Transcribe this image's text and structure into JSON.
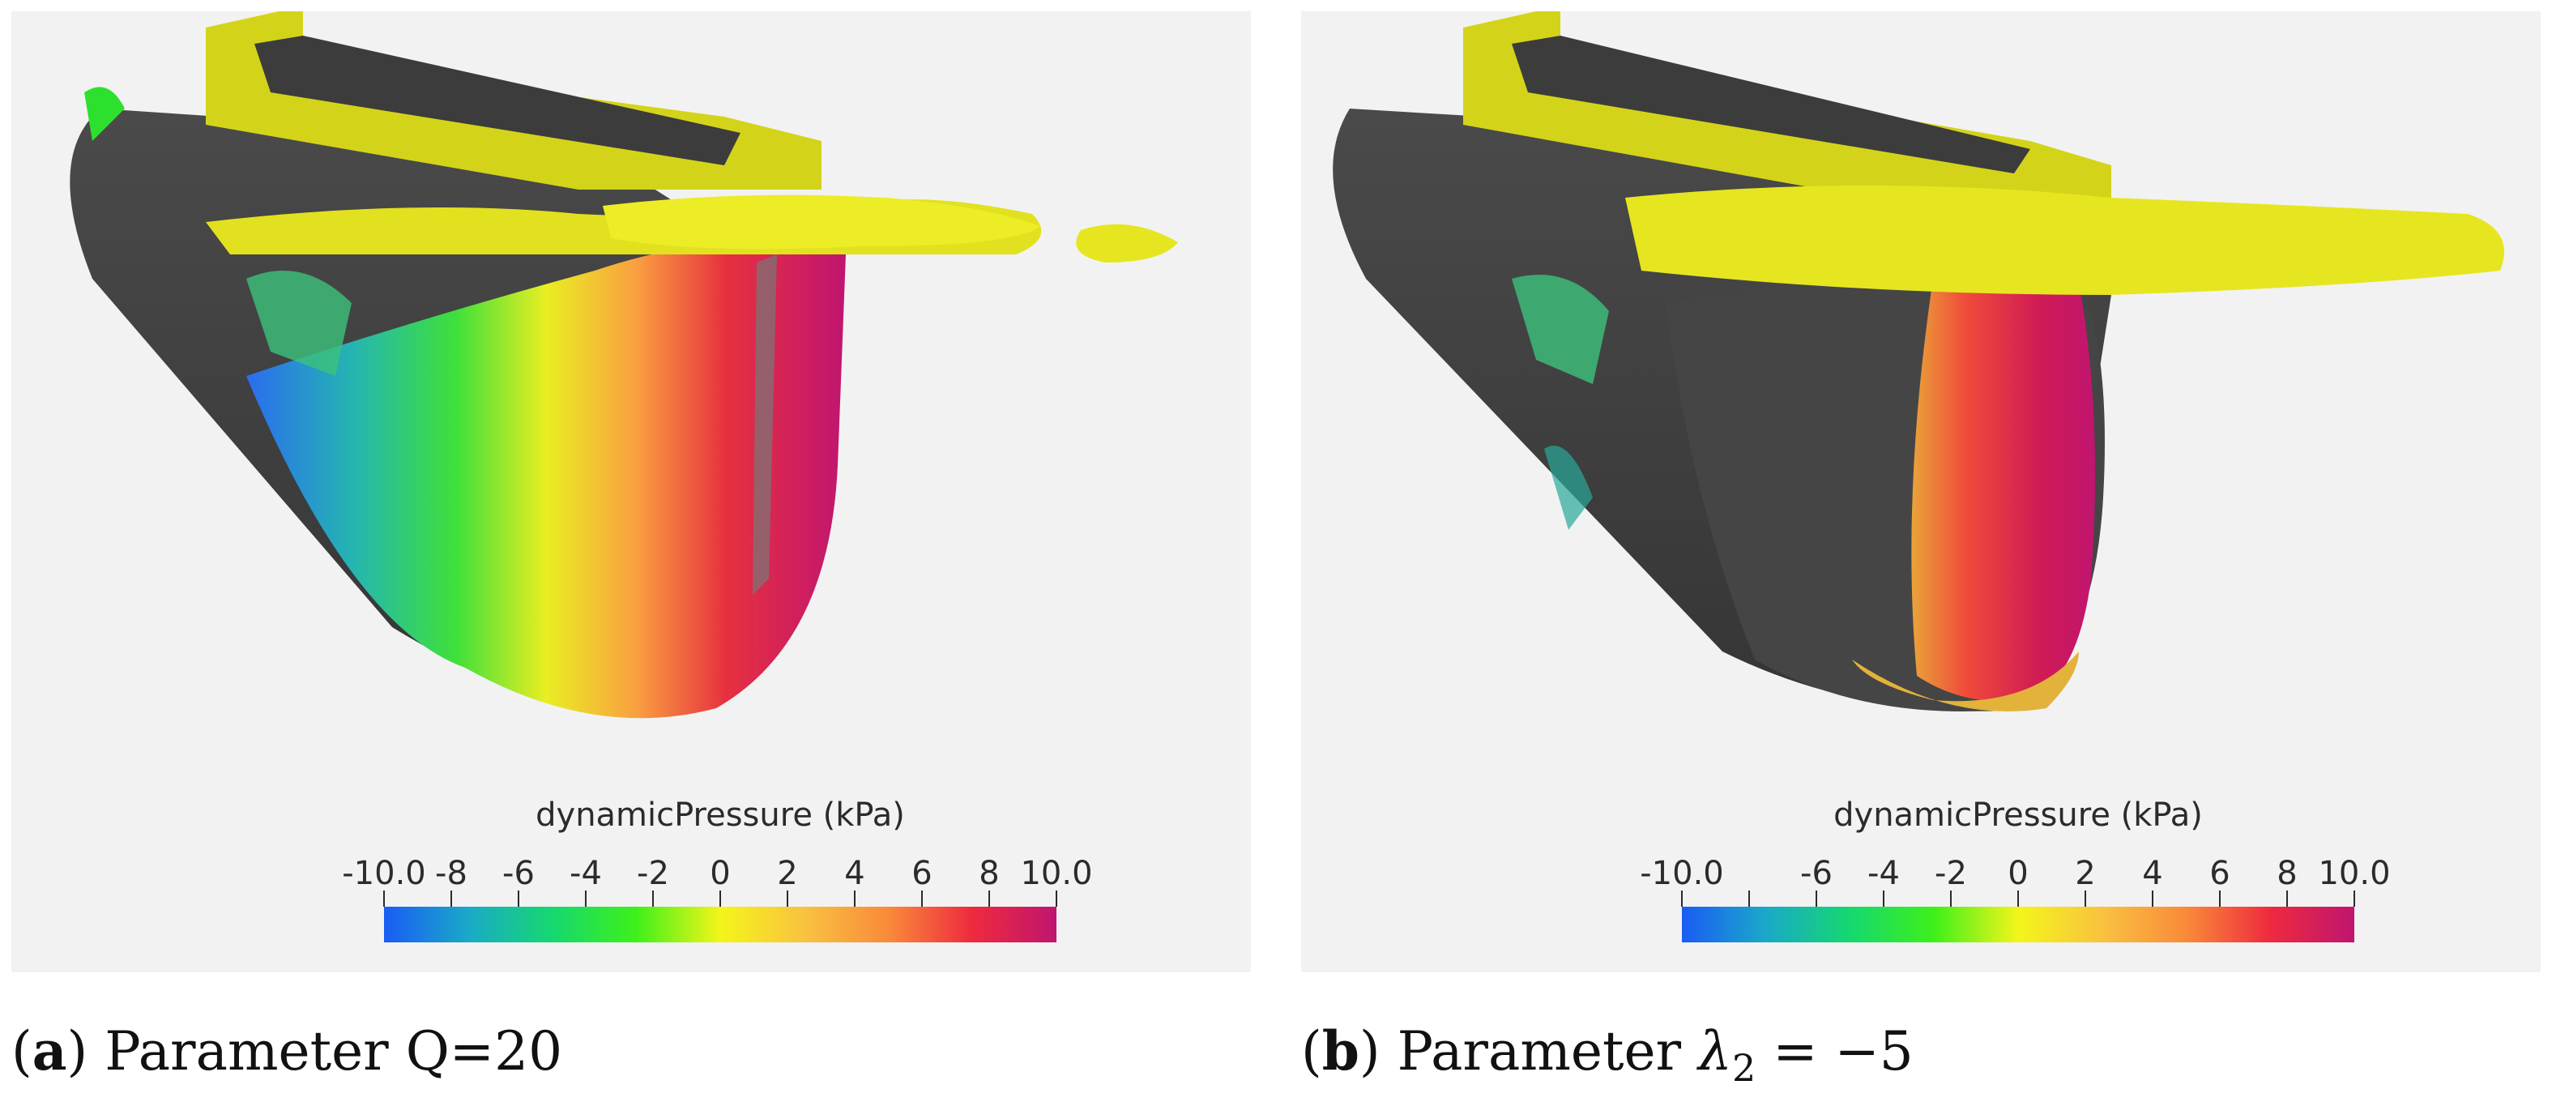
{
  "panels": [
    {
      "id": "a",
      "caption": {
        "label": "a",
        "text": "Parameter Q=20"
      },
      "legend": {
        "title": "dynamicPressure (kPa)",
        "ticks": [
          "-10.0",
          "-8",
          "-6",
          "-4",
          "-2",
          "0",
          "2",
          "4",
          "6",
          "8",
          "10.0"
        ],
        "tick_values": [
          -10,
          -8,
          -6,
          -4,
          -2,
          0,
          2,
          4,
          6,
          8,
          10
        ],
        "range": [
          -10,
          10
        ],
        "colormap": [
          "#1a5cf5",
          "#1aa9c8",
          "#15d870",
          "#3ef01a",
          "#f4f51a",
          "#f9c240",
          "#f98a3a",
          "#ee2a3e",
          "#c01570"
        ]
      }
    },
    {
      "id": "b",
      "caption": {
        "label": "b",
        "text_prefix": "Parameter ",
        "math_symbol": "λ",
        "math_subscript": "2",
        "math_rest": " = −5"
      },
      "legend": {
        "title": "dynamicPressure (kPa)",
        "ticks": [
          "-10.0",
          "",
          "-6",
          "-4",
          "-2",
          "0",
          "2",
          "4",
          "6",
          "8",
          "10.0"
        ],
        "tick_values": [
          -10,
          -8,
          -6,
          -4,
          -2,
          0,
          2,
          4,
          6,
          8,
          10
        ],
        "range": [
          -10,
          10
        ],
        "colormap": [
          "#1a5cf5",
          "#1aa9c8",
          "#15d870",
          "#3ef01a",
          "#f4f51a",
          "#f9c240",
          "#f98a3a",
          "#ee2a3e",
          "#c01570"
        ]
      }
    }
  ]
}
